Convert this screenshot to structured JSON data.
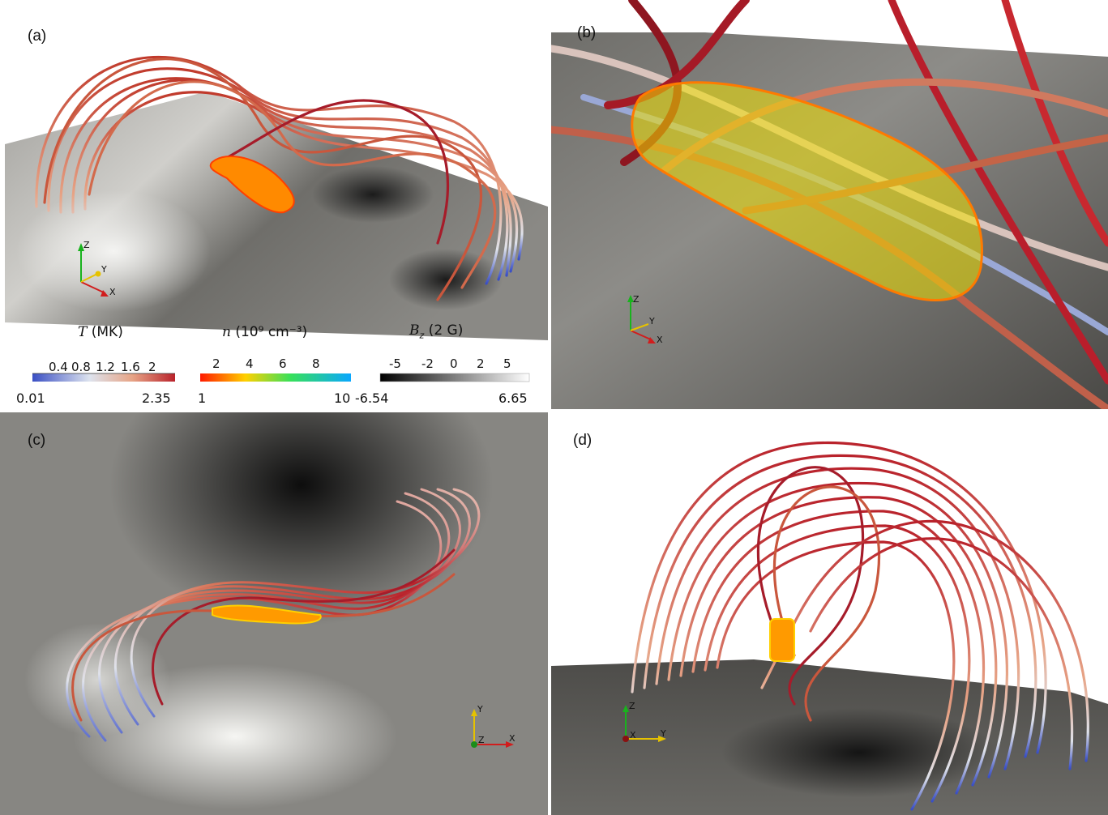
{
  "panels": {
    "a": {
      "label": "(a)"
    },
    "b": {
      "label": "(b)"
    },
    "c": {
      "label": "(c)"
    },
    "d": {
      "label": "(d)"
    }
  },
  "axes_labels": {
    "x": "X",
    "y": "Y",
    "z": "Z"
  },
  "colorbars": {
    "temperature": {
      "title_var": "T",
      "title_unit": " (MK)",
      "ticks": [
        "0.4",
        "0.8",
        "1.2",
        "1.6",
        "2"
      ],
      "min": "0.01",
      "max": "2.35",
      "colors": [
        "#3a4fc4",
        "#dde3ee",
        "#e7a486",
        "#b9222b"
      ]
    },
    "density": {
      "title_var": "n",
      "title_unit": " (10⁹  cm⁻³)",
      "ticks": [
        "2",
        "4",
        "6",
        "8"
      ],
      "min": "1",
      "max": "10",
      "colors": [
        "#ff1a00",
        "#ffd000",
        "#37e05a",
        "#0aa7ff"
      ]
    },
    "bz": {
      "title_var": "B",
      "title_sub": "z",
      "title_unit": "  (2 G)",
      "ticks": [
        "-5",
        "-2",
        "0",
        "2",
        "5"
      ],
      "min": "-6.54",
      "max": "6.65",
      "colors": [
        "#000000",
        "#ffffff"
      ]
    }
  },
  "colors": {
    "loop_hot": "#b9222b",
    "loop_warm": "#e08a6e",
    "loop_cool": "#dfe2ea",
    "loop_cold": "#3a4fc4",
    "plasma": "#ff8a00",
    "wire_yellow": "#f0e000"
  }
}
